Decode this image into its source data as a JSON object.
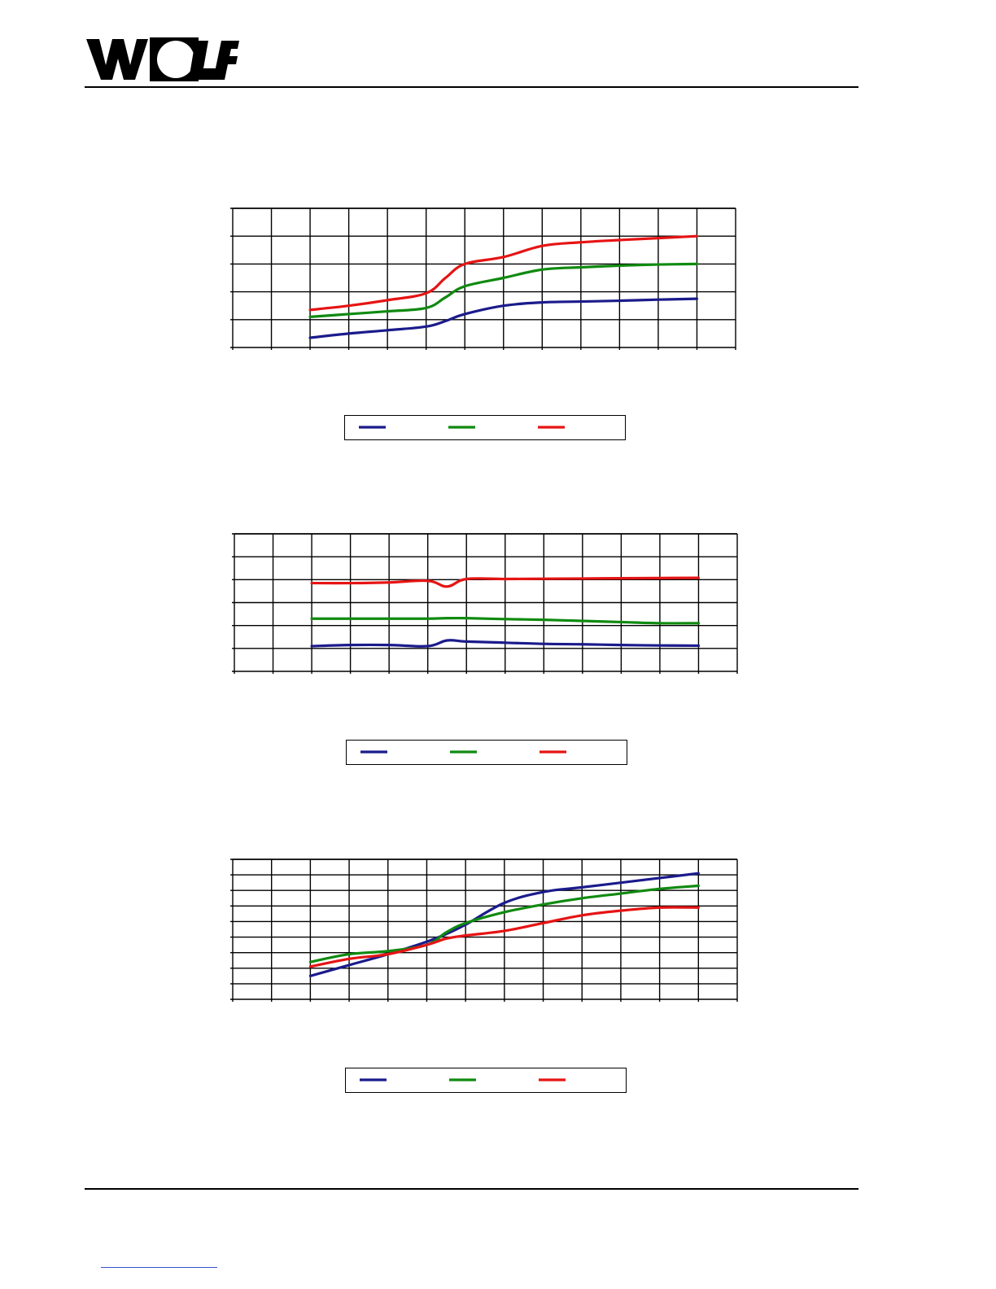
{
  "header": {
    "logo_text": "WOLF"
  },
  "colors": {
    "series1": "#1b1b8c",
    "series2": "#108a10",
    "series3": "#e61414",
    "grid": "#000000"
  },
  "chart_data": [
    {
      "type": "line",
      "title": "",
      "xlabel": "",
      "ylabel": "",
      "xlim": [
        0,
        13
      ],
      "ylim": [
        0,
        5
      ],
      "grid": true,
      "legend": "bottom-center",
      "x": [
        2,
        3,
        4,
        5,
        5.5,
        6,
        7,
        8,
        9,
        10,
        11,
        12
      ],
      "series": [
        {
          "color": "#1b1b8c",
          "values": [
            0.35,
            0.5,
            0.62,
            0.75,
            0.95,
            1.2,
            1.5,
            1.62,
            1.65,
            1.68,
            1.72,
            1.75
          ]
        },
        {
          "color": "#108a10",
          "values": [
            1.1,
            1.2,
            1.3,
            1.42,
            1.8,
            2.2,
            2.5,
            2.8,
            2.88,
            2.94,
            2.98,
            3.0
          ]
        },
        {
          "color": "#e61414",
          "values": [
            1.35,
            1.5,
            1.7,
            1.95,
            2.5,
            3.0,
            3.25,
            3.65,
            3.78,
            3.86,
            3.93,
            4.0
          ]
        }
      ]
    },
    {
      "type": "line",
      "title": "",
      "xlabel": "",
      "ylabel": "",
      "xlim": [
        0,
        13
      ],
      "ylim": [
        0,
        6
      ],
      "grid": true,
      "legend": "bottom-center",
      "x": [
        2,
        3,
        4,
        5,
        5.5,
        6,
        7,
        8,
        9,
        10,
        11,
        12
      ],
      "series": [
        {
          "color": "#1b1b8c",
          "values": [
            1.1,
            1.15,
            1.15,
            1.1,
            1.35,
            1.3,
            1.25,
            1.2,
            1.18,
            1.15,
            1.13,
            1.12
          ]
        },
        {
          "color": "#108a10",
          "values": [
            2.3,
            2.3,
            2.3,
            2.3,
            2.32,
            2.32,
            2.28,
            2.25,
            2.2,
            2.15,
            2.1,
            2.1
          ]
        },
        {
          "color": "#e61414",
          "values": [
            3.85,
            3.85,
            3.88,
            3.95,
            3.7,
            4.03,
            4.03,
            4.04,
            4.05,
            4.06,
            4.07,
            4.08
          ]
        }
      ]
    },
    {
      "type": "line",
      "title": "",
      "xlabel": "",
      "ylabel": "",
      "xlim": [
        0,
        13
      ],
      "ylim": [
        0,
        9
      ],
      "grid": true,
      "legend": "bottom-center",
      "x": [
        2,
        3,
        4,
        5,
        5.5,
        6,
        7,
        8,
        9,
        10,
        11,
        12
      ],
      "series": [
        {
          "color": "#1b1b8c",
          "values": [
            1.5,
            2.2,
            2.9,
            3.7,
            4.2,
            4.8,
            6.2,
            6.9,
            7.2,
            7.5,
            7.8,
            8.1
          ]
        },
        {
          "color": "#108a10",
          "values": [
            2.4,
            2.9,
            3.1,
            3.5,
            4.3,
            4.9,
            5.6,
            6.1,
            6.5,
            6.8,
            7.1,
            7.3
          ]
        },
        {
          "color": "#e61414",
          "values": [
            2.1,
            2.6,
            2.9,
            3.5,
            3.9,
            4.1,
            4.4,
            4.9,
            5.4,
            5.7,
            5.9,
            5.9
          ]
        }
      ]
    }
  ]
}
